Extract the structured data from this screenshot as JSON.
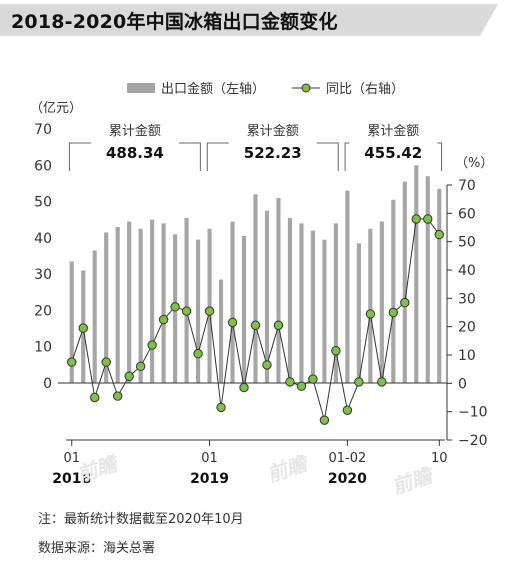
{
  "title": "2018-2020年中国冰箱出口金额变化",
  "legend": {
    "bar_label": "出口金额（左轴）",
    "line_label": "同比（右轴）"
  },
  "chart_data": {
    "type": "bar+line",
    "left_axis": {
      "unit": "（亿元）",
      "ticks": [
        0,
        10,
        20,
        30,
        40,
        50,
        60,
        70
      ],
      "range": [
        0,
        70
      ]
    },
    "right_axis": {
      "unit": "（%）",
      "ticks": [
        -20,
        -10,
        0,
        10,
        20,
        30,
        40,
        50,
        60,
        70
      ],
      "range": [
        -20,
        70
      ]
    },
    "x_tick_labels": [
      {
        "month_index": 0,
        "month": "01",
        "year": "2018"
      },
      {
        "month_index": 12,
        "month": "01",
        "year": "2019"
      },
      {
        "month_index": 24,
        "month": "01-02",
        "year": "2020"
      },
      {
        "month_index": 32,
        "month": "10",
        "year": ""
      }
    ],
    "bars": {
      "name": "出口金额（左轴）",
      "color": "#a6a6a6",
      "values": [
        33.5,
        31,
        36.5,
        41.5,
        43,
        44.5,
        42.5,
        45,
        44,
        41,
        45.5,
        39.5,
        42.5,
        28.5,
        44.5,
        40.5,
        52,
        47.5,
        51,
        45.5,
        44,
        42,
        39.5,
        44,
        53,
        38.5,
        42.5,
        44.5,
        50.5,
        55.5,
        60,
        57,
        53.5
      ]
    },
    "line": {
      "name": "同比（右轴）",
      "color": "#7dc242",
      "values": [
        7.5,
        19.5,
        -5,
        7.5,
        -4.5,
        2.5,
        6,
        13.5,
        22.5,
        27,
        25.5,
        10.5,
        25.5,
        -8.5,
        21.5,
        -1.5,
        20.5,
        6.5,
        20.5,
        0.5,
        -1,
        1.5,
        -13,
        11.5,
        -9.5,
        0.5,
        24.5,
        0.5,
        25,
        28.5,
        58,
        58,
        52.5
      ]
    },
    "annotations": [
      {
        "label": "累计金额",
        "value": "488.34",
        "from_index": 0,
        "to_index": 11
      },
      {
        "label": "累计金额",
        "value": "522.23",
        "from_index": 12,
        "to_index": 23
      },
      {
        "label": "累计金额",
        "value": "455.42",
        "from_index": 24,
        "to_index": 32
      }
    ]
  },
  "notes": {
    "note": "注：最新统计数据截至2020年10月",
    "source": "数据来源：海关总署"
  },
  "watermark": "前瞻"
}
